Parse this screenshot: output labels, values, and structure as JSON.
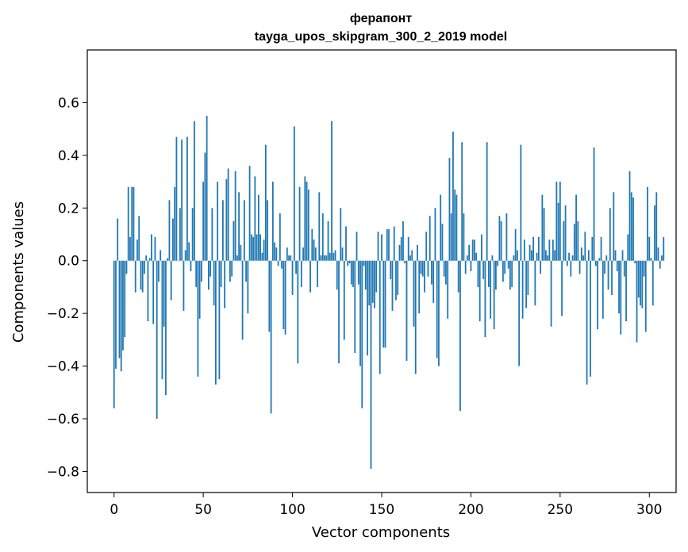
{
  "chart_data": {
    "type": "bar",
    "title": "ферапонт",
    "subtitle": "tayga_upos_skipgram_300_2_2019 model",
    "xlabel": "Vector components",
    "ylabel": "Components values",
    "xlim": [
      -15,
      315
    ],
    "ylim": [
      -0.88,
      0.8
    ],
    "xticks": [
      0,
      50,
      100,
      150,
      200,
      250,
      300
    ],
    "yticks": [
      -0.8,
      -0.6,
      -0.4,
      -0.2,
      0.0,
      0.2,
      0.4,
      0.6
    ],
    "ytick_labels": [
      "−0.8",
      "−0.6",
      "−0.4",
      "−0.2",
      "0.0",
      "0.2",
      "0.4",
      "0.6"
    ],
    "xtick_labels": [
      "0",
      "50",
      "100",
      "150",
      "200",
      "250",
      "300"
    ],
    "bar_color": "#1f77b4",
    "values": [
      -0.56,
      -0.41,
      0.16,
      -0.37,
      -0.42,
      -0.34,
      -0.29,
      -0.05,
      0.28,
      0.09,
      0.28,
      0.28,
      -0.12,
      0.08,
      0.17,
      -0.11,
      -0.12,
      -0.05,
      0.02,
      -0.23,
      0.01,
      0.1,
      -0.24,
      0.09,
      -0.6,
      -0.08,
      0.04,
      -0.45,
      -0.25,
      -0.51,
      0.01,
      0.23,
      -0.15,
      0.16,
      0.28,
      0.47,
      0.0,
      0.2,
      0.46,
      -0.19,
      0.04,
      0.47,
      0.07,
      -0.04,
      0.2,
      0.53,
      -0.1,
      -0.44,
      -0.22,
      -0.08,
      0.3,
      0.41,
      0.55,
      -0.11,
      -0.06,
      0.2,
      -0.17,
      -0.47,
      0.3,
      -0.45,
      -0.1,
      0.23,
      -0.18,
      0.31,
      0.35,
      -0.08,
      -0.06,
      0.15,
      0.34,
      0.02,
      0.26,
      0.06,
      -0.3,
      0.23,
      -0.08,
      -0.2,
      0.36,
      0.1,
      0.09,
      0.32,
      0.1,
      0.25,
      0.1,
      0.03,
      0.08,
      0.44,
      0.23,
      -0.27,
      -0.58,
      0.3,
      0.07,
      0.05,
      -0.02,
      0.18,
      -0.03,
      -0.26,
      -0.28,
      0.05,
      0.02,
      0.02,
      -0.13,
      0.51,
      -0.05,
      -0.39,
      0.28,
      -0.1,
      0.05,
      0.32,
      0.3,
      0.27,
      -0.12,
      0.12,
      0.08,
      0.05,
      -0.1,
      0.26,
      0.02,
      0.18,
      0.02,
      0.02,
      0.15,
      0.03,
      0.53,
      0.03,
      0.04,
      -0.11,
      -0.39,
      0.2,
      0.05,
      -0.3,
      0.13,
      -0.02,
      -0.01,
      -0.09,
      -0.1,
      -0.35,
      0.11,
      -0.09,
      -0.4,
      -0.56,
      -0.02,
      -0.11,
      -0.36,
      -0.17,
      -0.79,
      -0.16,
      -0.18,
      -0.12,
      0.11,
      -0.43,
      0.1,
      -0.33,
      -0.33,
      0.12,
      0.12,
      -0.07,
      -0.19,
      0.13,
      -0.15,
      -0.13,
      0.06,
      0.09,
      0.15,
      -0.01,
      -0.38,
      0.09,
      0.02,
      0.04,
      -0.25,
      -0.43,
      0.06,
      -0.2,
      -0.05,
      -0.06,
      -0.12,
      0.11,
      -0.06,
      0.17,
      -0.09,
      -0.16,
      0.2,
      -0.37,
      -0.4,
      0.25,
      0.14,
      -0.06,
      -0.09,
      -0.22,
      0.39,
      0.18,
      0.49,
      0.27,
      0.25,
      -0.12,
      -0.57,
      0.45,
      0.18,
      -0.05,
      0.02,
      0.06,
      -0.04,
      0.08,
      0.08,
      0.03,
      -0.1,
      -0.23,
      0.1,
      -0.07,
      -0.29,
      0.45,
      -0.1,
      -0.22,
      0.02,
      -0.26,
      -0.11,
      -0.02,
      0.17,
      0.15,
      -0.08,
      -0.05,
      0.18,
      -0.03,
      -0.11,
      -0.1,
      0.02,
      0.12,
      0.04,
      -0.4,
      0.44,
      -0.22,
      0.08,
      -0.18,
      -0.13,
      0.06,
      0.04,
      0.09,
      -0.17,
      0.03,
      0.09,
      -0.05,
      0.25,
      0.2,
      0.04,
      0.02,
      0.08,
      -0.25,
      0.08,
      0.04,
      0.3,
      0.22,
      0.3,
      -0.21,
      0.15,
      0.21,
      -0.02,
      0.03,
      -0.06,
      0.02,
      0.14,
      0.25,
      0.15,
      -0.05,
      0.05,
      0.02,
      0.11,
      -0.47,
      0.04,
      -0.44,
      0.09,
      0.43,
      -0.02,
      -0.26,
      0.01,
      0.09,
      -0.22,
      -0.05,
      0.02,
      -0.11,
      0.2,
      -0.13,
      0.26,
      0.04,
      -0.04,
      -0.2,
      -0.28,
      0.04,
      -0.06,
      -0.23,
      0.1,
      0.34,
      0.26,
      0.24,
      -0.01,
      -0.31,
      -0.14,
      -0.17,
      -0.18,
      -0.06,
      -0.27,
      0.28,
      0.09,
      0.01,
      -0.17,
      0.21,
      0.26,
      0.05,
      -0.03,
      0.02,
      0.09
    ]
  }
}
